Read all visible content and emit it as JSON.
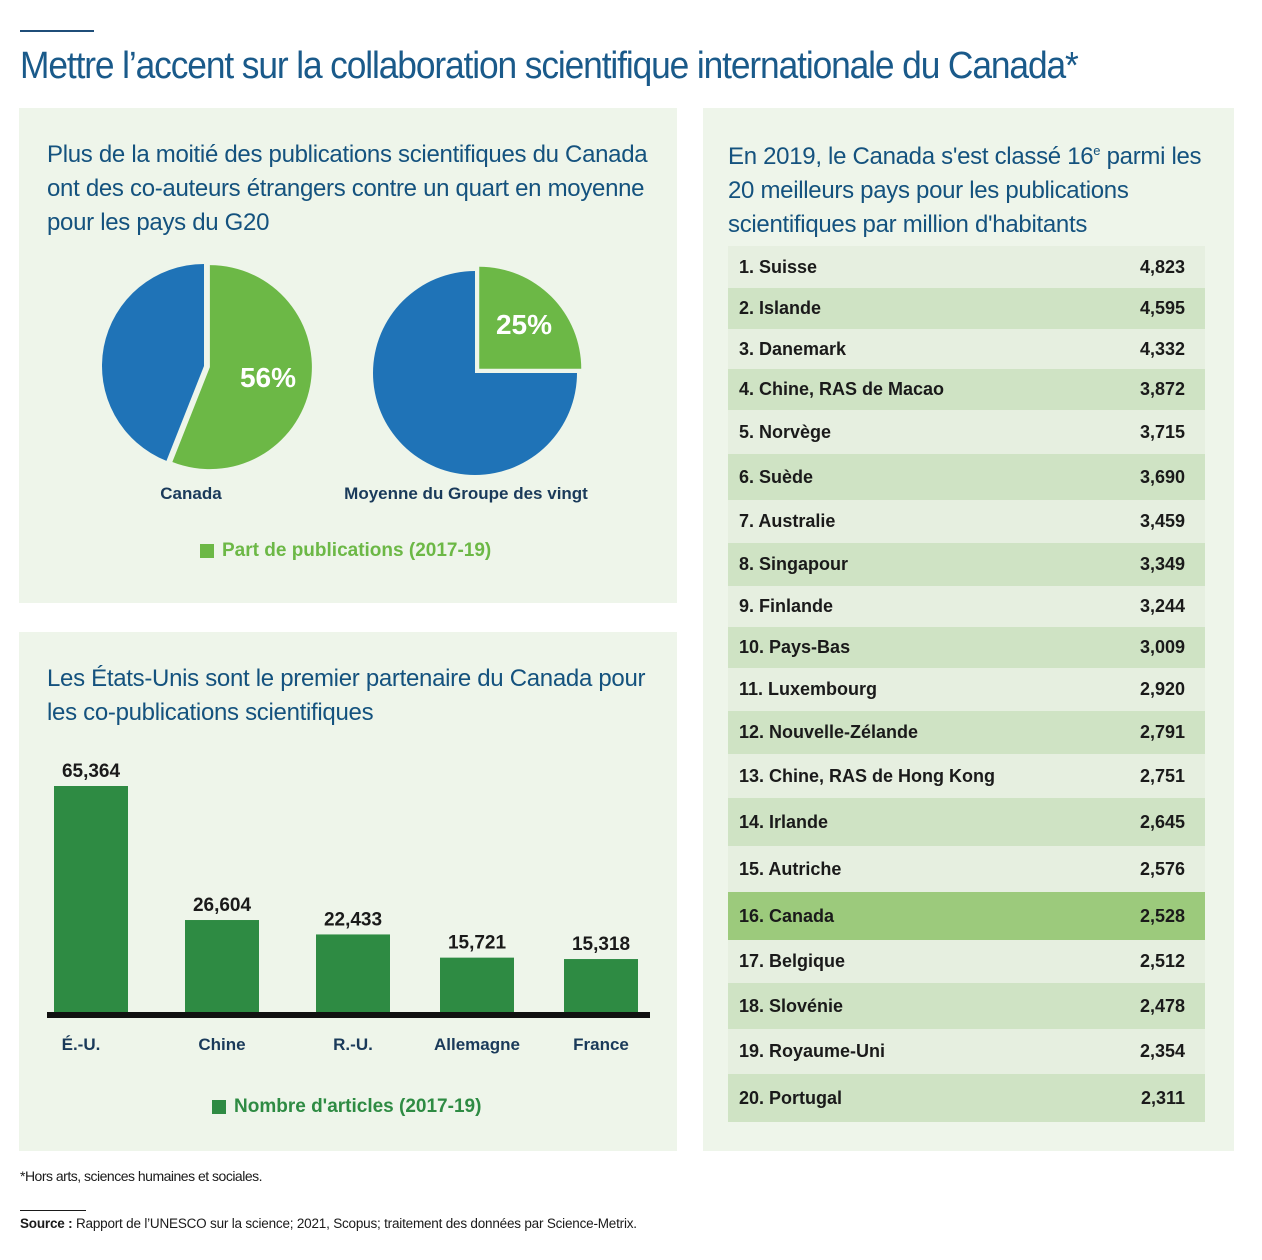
{
  "title": "Mettre l’accent sur la collaboration scientifique internationale du Canada*",
  "colors": {
    "blue": "#1f73b7",
    "light_green": "#6cb846",
    "dark_green": "#2e8b43",
    "title_blue": "#14527e"
  },
  "pie_section": {
    "title": "Plus de la moitié des publications scientifiques du Canada ont des co-auteurs étrangers contre un quart en moyenne pour les pays du G20",
    "legend": "Part de publications (2017-19)"
  },
  "bar_section": {
    "title": "Les États-Unis sont le premier partenaire du Canada pour les co-publications scientifiques",
    "legend": "Nombre d'articles (2017-19)"
  },
  "rank_section": {
    "title_pre": "En 2019, le Canada s'est classé 16",
    "title_sup": "e",
    "title_post": " parmi les 20 meilleurs pays pour les publications scientifiques par million d'habitants"
  },
  "chart_data": [
    {
      "type": "pie",
      "label": "Canada",
      "slices": [
        {
          "name": "Part de publications (2017-19)",
          "value": 56,
          "label": "56%",
          "color": "#6cb846"
        },
        {
          "name": "",
          "value": 44,
          "color": "#1f73b7"
        }
      ]
    },
    {
      "type": "pie",
      "label": "Moyenne du Groupe des vingt",
      "slices": [
        {
          "name": "Part de publications (2017-19)",
          "value": 25,
          "label": "25%",
          "color": "#6cb846"
        },
        {
          "name": "",
          "value": 75,
          "color": "#1f73b7"
        }
      ]
    },
    {
      "type": "bar",
      "categories": [
        "É.-U.",
        "Chine",
        "R.-U.",
        "Allemagne",
        "France"
      ],
      "values": [
        65364,
        26604,
        22433,
        15721,
        15318
      ],
      "value_labels": [
        "65,364",
        "26,604",
        "22,433",
        "15,721",
        "15,318"
      ],
      "series_name": "Nombre d'articles (2017-19)",
      "ylim": [
        0,
        70000
      ]
    },
    {
      "type": "table",
      "rows": [
        {
          "label": "1. Suisse",
          "value": "4,823"
        },
        {
          "label": "2. Islande",
          "value": "4,595"
        },
        {
          "label": "3. Danemark",
          "value": "4,332"
        },
        {
          "label": "4. Chine, RAS de Macao",
          "value": "3,872"
        },
        {
          "label": "5. Norvège",
          "value": "3,715"
        },
        {
          "label": "6. Suède",
          "value": "3,690"
        },
        {
          "label": "7. Australie",
          "value": "3,459"
        },
        {
          "label": "8. Singapour",
          "value": "3,349"
        },
        {
          "label": "9. Finlande",
          "value": "3,244"
        },
        {
          "label": "10. Pays-Bas",
          "value": "3,009"
        },
        {
          "label": "11. Luxembourg",
          "value": "2,920"
        },
        {
          "label": "12. Nouvelle-Zélande",
          "value": "2,791"
        },
        {
          "label": "13. Chine, RAS de Hong Kong",
          "value": "2,751"
        },
        {
          "label": "14. Irlande",
          "value": "2,645"
        },
        {
          "label": "15. Autriche",
          "value": "2,576"
        },
        {
          "label": "16. Canada",
          "value": "2,528",
          "highlight": true
        },
        {
          "label": "17. Belgique",
          "value": "2,512"
        },
        {
          "label": "18. Slovénie",
          "value": "2,478"
        },
        {
          "label": "19. Royaume-Uni",
          "value": "2,354"
        },
        {
          "label": "20. Portugal",
          "value": "2,311"
        }
      ]
    }
  ],
  "footnote": "*Hors arts, sciences humaines et sociales.",
  "source": {
    "label": "Source :",
    "text": " Rapport de l’UNESCO sur la science; 2021, Scopus; traitement des données par Science-Metrix."
  }
}
